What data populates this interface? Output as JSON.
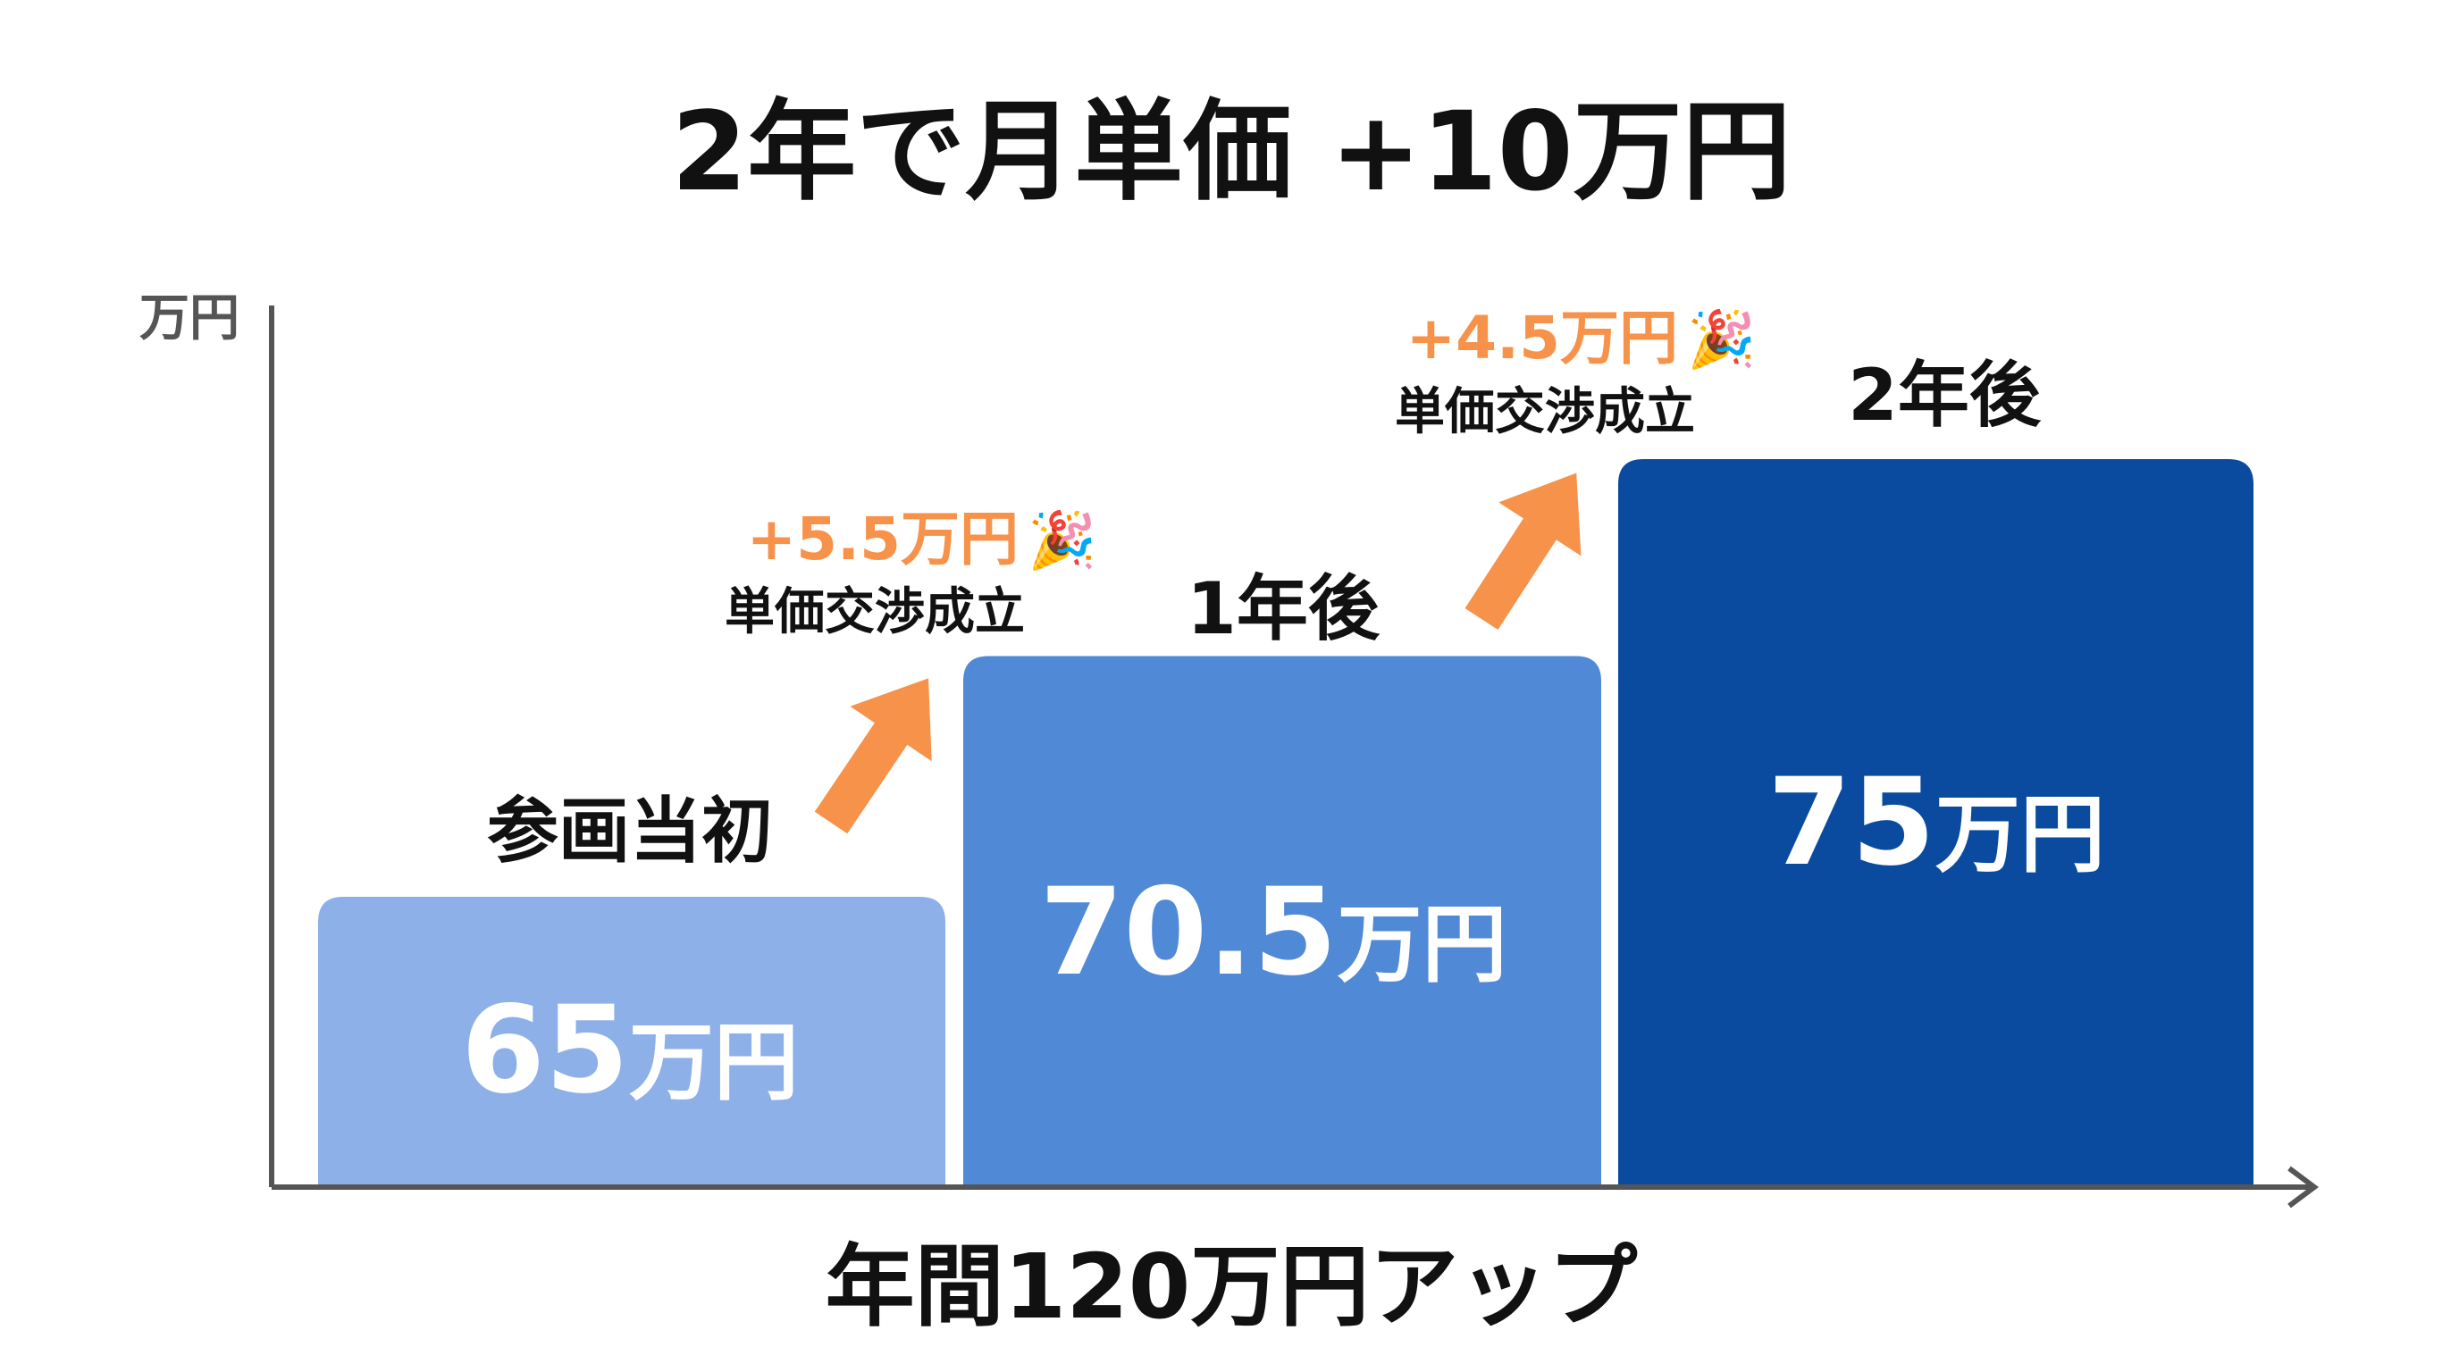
{
  "chart_data": {
    "type": "bar",
    "title": "2年で月単価 +10万円",
    "ylabel": "万円",
    "xlabel": "年間120万円アップ",
    "ylim": [
      0,
      80
    ],
    "grid": false,
    "categories": [
      "参画当初",
      "1年後",
      "2年後"
    ],
    "values": [
      65,
      70.5,
      75
    ],
    "value_labels": [
      {
        "number": "65",
        "unit": "万円"
      },
      {
        "number": "70.5",
        "unit": "万円"
      },
      {
        "number": "75",
        "unit": "万円"
      }
    ],
    "colors": [
      "#8db0e8",
      "#5089d6",
      "#0a4ba0"
    ],
    "annotations": [
      {
        "delta": "+5.5万円",
        "note": "単価交渉成立",
        "icon": "party-popper-icon"
      },
      {
        "delta": "+4.5万円",
        "note": "単価交渉成立",
        "icon": "party-popper-icon"
      }
    ],
    "accent_color": "#f7924a"
  }
}
